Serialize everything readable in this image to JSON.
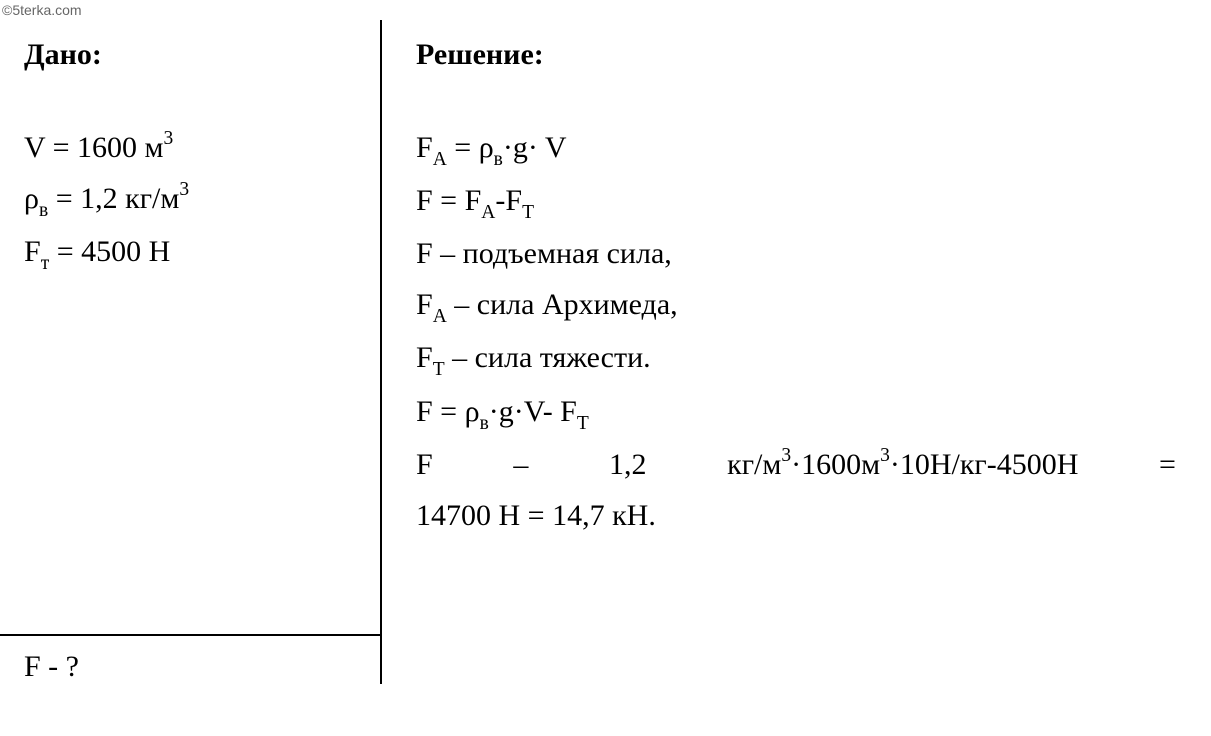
{
  "watermark": "©5terka.com",
  "given": {
    "title": "Дано:",
    "lines": [
      {
        "html": "V = 1600 м<sup>3</sup>"
      },
      {
        "html": "ρ<sub>в</sub> = 1,2 кг/м<sup>3</sup>"
      },
      {
        "html": "F<sub>т</sub> = 4500 Н"
      }
    ],
    "find": {
      "html": "F - ?"
    }
  },
  "solution": {
    "title": "Решение:",
    "lines": [
      {
        "html": "F<sub>A</sub> = ρ<sub>в</sub>·g· V"
      },
      {
        "html": "F = F<sub>A</sub>-F<sub>T</sub>"
      },
      {
        "html": "F – подъемная сила,"
      },
      {
        "html": "F<sub>A</sub> – сила Архимеда,"
      },
      {
        "html": "F<sub>T</sub> – сила тяжести."
      },
      {
        "html": "F = ρ<sub>в</sub>·g·V- F<sub>T</sub>"
      }
    ],
    "justified_line": {
      "parts": [
        "F",
        "–",
        "1,2",
        "кг/м<sup>3</sup>·1600м<sup>3</sup>·10Н/кг-4500Н",
        "="
      ]
    },
    "last_line": {
      "html": "14700 Н = 14,7 кН."
    }
  },
  "style": {
    "font_family": "Times New Roman",
    "font_size_body": 30,
    "font_size_watermark": 14,
    "text_color": "#000000",
    "watermark_color": "#666666",
    "background_color": "#ffffff",
    "divider_color": "#000000",
    "divider_width": 2.5,
    "given_width": 380,
    "line_height": 1.7
  }
}
